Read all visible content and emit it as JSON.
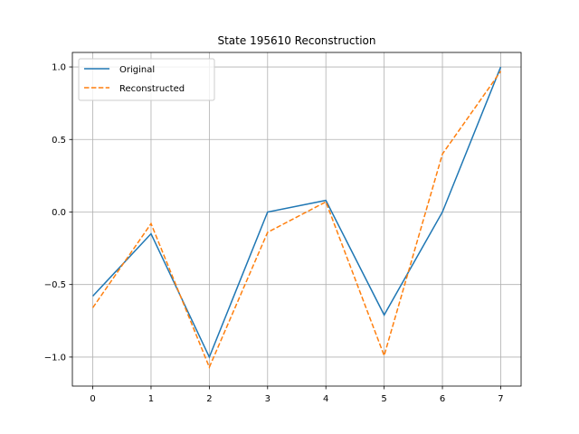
{
  "chart_data": {
    "type": "line",
    "title": "State 195610 Reconstruction",
    "xlabel": "",
    "ylabel": "",
    "x": [
      0,
      1,
      2,
      3,
      4,
      5,
      6,
      7
    ],
    "xlim": [
      -0.35,
      7.35
    ],
    "ylim": [
      -1.2,
      1.1
    ],
    "xticks": [
      "0",
      "1",
      "2",
      "3",
      "4",
      "5",
      "6",
      "7"
    ],
    "yticks": [
      {
        "value": -1.0,
        "label": "−1.0"
      },
      {
        "value": -0.5,
        "label": "−0.5"
      },
      {
        "value": 0.0,
        "label": "0.0"
      },
      {
        "value": 0.5,
        "label": "0.5"
      },
      {
        "value": 1.0,
        "label": "1.0"
      }
    ],
    "grid": true,
    "legend_position": "top-left",
    "series": [
      {
        "name": "Original",
        "color": "#1f77b4",
        "style": "solid",
        "values": [
          -0.58,
          -0.15,
          -1.0,
          0.0,
          0.08,
          -0.71,
          0.0,
          1.0
        ]
      },
      {
        "name": "Reconstructed",
        "color": "#ff7f0e",
        "style": "dashed",
        "values": [
          -0.66,
          -0.08,
          -1.07,
          -0.14,
          0.07,
          -0.99,
          0.4,
          0.97
        ]
      }
    ]
  }
}
